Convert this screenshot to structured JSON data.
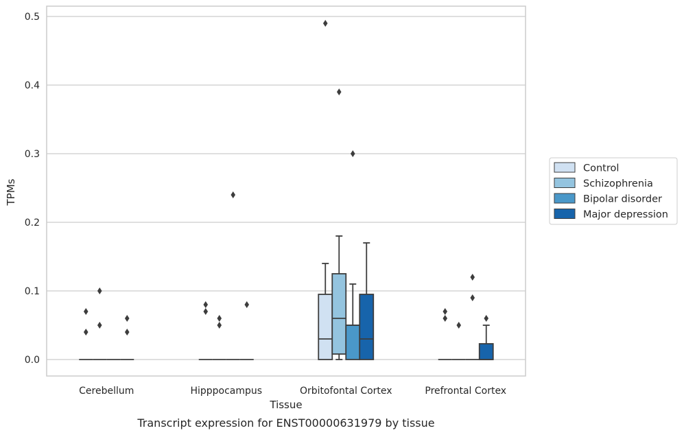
{
  "caption": "Transcript expression for ENST00000631979 by tissue",
  "chart_data": {
    "type": "box",
    "xlabel": "Tissue",
    "ylabel": "TPMs",
    "ylim": [
      -0.024,
      0.515
    ],
    "yticks": [
      "0.0",
      "0.1",
      "0.2",
      "0.3",
      "0.4",
      "0.5"
    ],
    "grid": "horizontal",
    "legend_position": "right",
    "categories": [
      "Cerebellum",
      "Hipppocampus",
      "Orbitofontal Cortex",
      "Prefrontal Cortex"
    ],
    "series": [
      {
        "name": "Control",
        "color": "#d0e1f2",
        "boxes": [
          {
            "q1": 0,
            "median": 0,
            "q3": 0,
            "whisker_low": 0,
            "whisker_high": 0,
            "outliers": [
              0.04,
              0.07
            ]
          },
          {
            "q1": 0,
            "median": 0,
            "q3": 0,
            "whisker_low": 0,
            "whisker_high": 0,
            "outliers": [
              0.07,
              0.08
            ]
          },
          {
            "q1": 0,
            "median": 0.03,
            "q3": 0.095,
            "whisker_low": 0,
            "whisker_high": 0.14,
            "outliers": [
              0.49
            ]
          },
          {
            "q1": 0,
            "median": 0,
            "q3": 0,
            "whisker_low": 0,
            "whisker_high": 0,
            "outliers": [
              0.06,
              0.07
            ]
          }
        ]
      },
      {
        "name": "Schizophrenia",
        "color": "#94c4df",
        "boxes": [
          {
            "q1": 0,
            "median": 0,
            "q3": 0,
            "whisker_low": 0,
            "whisker_high": 0,
            "outliers": [
              0.05,
              0.1
            ]
          },
          {
            "q1": 0,
            "median": 0,
            "q3": 0,
            "whisker_low": 0,
            "whisker_high": 0,
            "outliers": [
              0.05,
              0.06
            ]
          },
          {
            "q1": 0.008,
            "median": 0.06,
            "q3": 0.125,
            "whisker_low": 0,
            "whisker_high": 0.18,
            "outliers": [
              0.39
            ]
          },
          {
            "q1": 0,
            "median": 0,
            "q3": 0,
            "whisker_low": 0,
            "whisker_high": 0,
            "outliers": [
              0.05
            ]
          }
        ]
      },
      {
        "name": "Bipolar disorder",
        "color": "#4a98c9",
        "boxes": [
          {
            "q1": 0,
            "median": 0,
            "q3": 0,
            "whisker_low": 0,
            "whisker_high": 0,
            "outliers": []
          },
          {
            "q1": 0,
            "median": 0,
            "q3": 0,
            "whisker_low": 0,
            "whisker_high": 0,
            "outliers": [
              0.24
            ]
          },
          {
            "q1": 0,
            "median": 0.05,
            "q3": 0.05,
            "whisker_low": 0,
            "whisker_high": 0.11,
            "outliers": [
              0.3
            ]
          },
          {
            "q1": 0,
            "median": 0,
            "q3": 0,
            "whisker_low": 0,
            "whisker_high": 0,
            "outliers": [
              0.09,
              0.12
            ]
          }
        ]
      },
      {
        "name": "Major depression",
        "color": "#1764ab",
        "boxes": [
          {
            "q1": 0,
            "median": 0,
            "q3": 0,
            "whisker_low": 0,
            "whisker_high": 0,
            "outliers": [
              0.04,
              0.06
            ]
          },
          {
            "q1": 0,
            "median": 0,
            "q3": 0,
            "whisker_low": 0,
            "whisker_high": 0,
            "outliers": [
              0.08
            ]
          },
          {
            "q1": 0,
            "median": 0.03,
            "q3": 0.095,
            "whisker_low": 0,
            "whisker_high": 0.17,
            "outliers": []
          },
          {
            "q1": 0,
            "median": 0,
            "q3": 0.023,
            "whisker_low": 0,
            "whisker_high": 0.05,
            "outliers": [
              0.06
            ]
          }
        ]
      }
    ]
  }
}
